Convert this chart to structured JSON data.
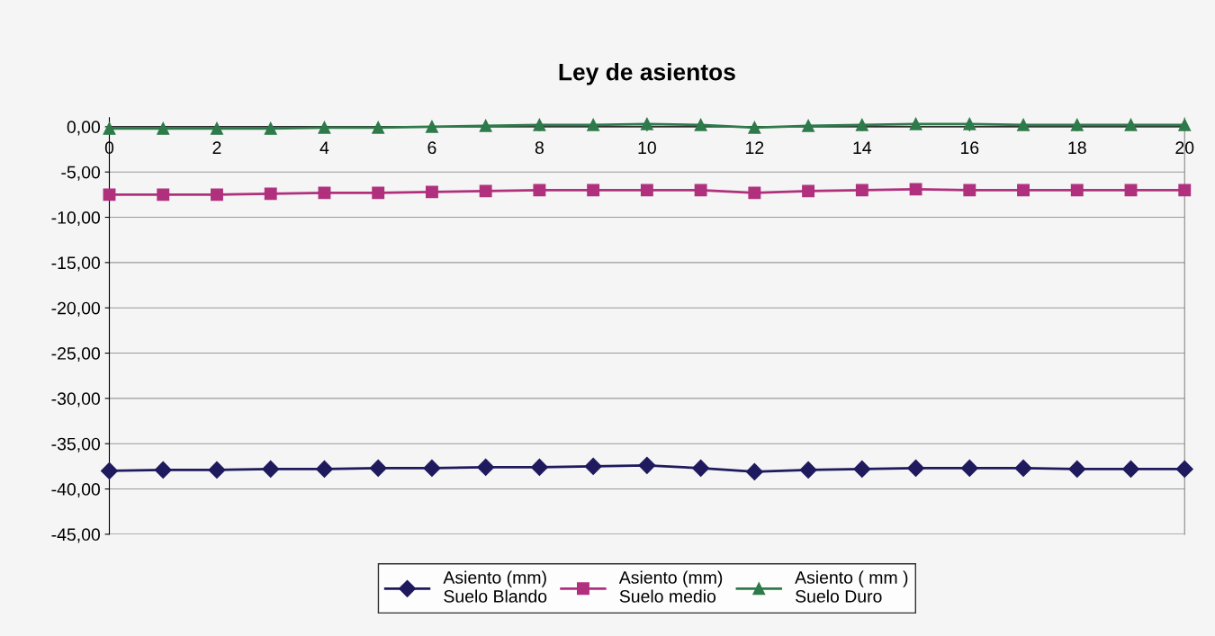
{
  "chart_data": {
    "type": "line",
    "title": "Ley de asientos",
    "x": [
      0,
      1,
      2,
      3,
      4,
      5,
      6,
      7,
      8,
      9,
      10,
      11,
      12,
      13,
      14,
      15,
      16,
      17,
      18,
      19,
      20
    ],
    "series": [
      {
        "name": "Asiento (mm)\nSuelo Blando",
        "color": "#1f1a5e",
        "marker": "diamond",
        "values": [
          -38.0,
          -37.9,
          -37.9,
          -37.8,
          -37.8,
          -37.7,
          -37.7,
          -37.6,
          -37.6,
          -37.5,
          -37.4,
          -37.7,
          -38.1,
          -37.9,
          -37.8,
          -37.7,
          -37.7,
          -37.7,
          -37.8,
          -37.8,
          -37.8
        ]
      },
      {
        "name": "Asiento (mm)\nSuelo medio",
        "color": "#b0307e",
        "marker": "square",
        "values": [
          -7.5,
          -7.5,
          -7.5,
          -7.4,
          -7.3,
          -7.3,
          -7.2,
          -7.1,
          -7.0,
          -7.0,
          -7.0,
          -7.0,
          -7.3,
          -7.1,
          -7.0,
          -6.9,
          -7.0,
          -7.0,
          -7.0,
          -7.0,
          -7.0
        ]
      },
      {
        "name": "Asiento ( mm )\nSuelo Duro",
        "color": "#2e7a4a",
        "marker": "triangle",
        "values": [
          -0.2,
          -0.2,
          -0.2,
          -0.2,
          -0.1,
          -0.1,
          0.0,
          0.1,
          0.2,
          0.2,
          0.3,
          0.2,
          -0.1,
          0.1,
          0.2,
          0.3,
          0.3,
          0.2,
          0.2,
          0.2,
          0.2
        ]
      }
    ],
    "xlim": [
      0,
      20
    ],
    "xticks": [
      0,
      2,
      4,
      6,
      8,
      10,
      12,
      14,
      16,
      18,
      20
    ],
    "ylim": [
      -45,
      1
    ],
    "yticks": [
      {
        "value": 0,
        "label": "0,00"
      },
      {
        "value": -5,
        "label": "-5,00"
      },
      {
        "value": -10,
        "label": "-10,00"
      },
      {
        "value": -15,
        "label": "-15,00"
      },
      {
        "value": -20,
        "label": "-20,00"
      },
      {
        "value": -25,
        "label": "-25,00"
      },
      {
        "value": -30,
        "label": "-30,00"
      },
      {
        "value": -35,
        "label": "-35,00"
      },
      {
        "value": -40,
        "label": "-40,00"
      },
      {
        "value": -45,
        "label": "-45,00"
      }
    ],
    "grid": "y",
    "legend": "bottom",
    "line_style": "solid"
  }
}
